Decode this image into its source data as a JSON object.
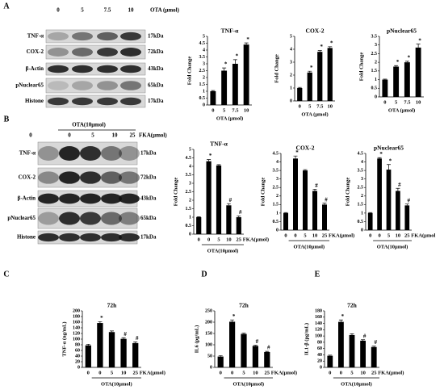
{
  "panel_labels": [
    "A",
    "B",
    "C",
    "D",
    "E"
  ],
  "blot_a": {
    "header": [
      "0",
      "5",
      "7.5",
      "10"
    ],
    "unit": "OTA (μmol)",
    "rows": [
      {
        "label": "TNF-α",
        "kda": "17kDa"
      },
      {
        "label": "COX-2",
        "kda": "72kDa"
      },
      {
        "label": "β-Actin",
        "kda": "43kDa"
      },
      {
        "label": "pNuclear65",
        "kda": "65kDa"
      },
      {
        "label": "Histone",
        "kda": "17kDa"
      }
    ]
  },
  "blot_b": {
    "group": "OTA(10μmol)",
    "header": [
      "0",
      "0",
      "5",
      "10",
      "25"
    ],
    "unit": "FKA(μmol)",
    "rows": [
      {
        "label": "TNF-α",
        "kda": "17kDa"
      },
      {
        "label": "COX-2",
        "kda": "72kDa"
      },
      {
        "label": "β-Actin",
        "kda": "43kDa"
      },
      {
        "label": "pNuclear65",
        "kda": "65kDa"
      },
      {
        "label": "Histone",
        "kda": "17kDa"
      }
    ]
  },
  "chart_data": [
    {
      "type": "bar",
      "title": "TNF-α",
      "y_label": "Fold Change",
      "x_label": "OTA (μmol)",
      "categories": [
        "0",
        "5",
        "7.5",
        "10"
      ],
      "values": [
        1,
        2.5,
        3.0,
        4.4
      ],
      "errors": [
        0.05,
        0.2,
        0.3,
        0.12
      ],
      "annotations": [
        null,
        "*",
        "*",
        "*"
      ],
      "color": "#000000",
      "ylim": [
        0,
        5
      ],
      "yticks": [
        0,
        0.5,
        1,
        1.5,
        2,
        2.5,
        3,
        3.5,
        4,
        4.5,
        5
      ]
    },
    {
      "type": "bar",
      "title": "COX-2",
      "y_label": "Fold Change",
      "x_label": "OTA (μmol)",
      "categories": [
        "0",
        "5",
        "7.5",
        "10"
      ],
      "values": [
        1,
        2.2,
        3.8,
        4.1
      ],
      "errors": [
        0.05,
        0.1,
        0.1,
        0.1
      ],
      "annotations": [
        null,
        "*",
        "*",
        "*"
      ],
      "color": "#000000",
      "ylim": [
        0,
        5
      ],
      "yticks": [
        0,
        1,
        2,
        3,
        4,
        5
      ]
    },
    {
      "type": "bar",
      "title": "pNuclear65",
      "y_label": "Fold Change",
      "x_label": "OTA (μmol)",
      "categories": [
        "0",
        "5",
        "7.5",
        "10"
      ],
      "values": [
        1,
        1.75,
        2.0,
        2.85
      ],
      "errors": [
        0.03,
        0.06,
        0.06,
        0.2
      ],
      "annotations": [
        null,
        "*",
        "*",
        "*"
      ],
      "color": "#000000",
      "ylim": [
        0,
        3.5
      ],
      "yticks": [
        0,
        0.5,
        1,
        1.5,
        2,
        2.5,
        3,
        3.5
      ]
    },
    {
      "type": "bar",
      "title": "TNF-α",
      "y_label": "Fold Change",
      "group_label": "OTA(10μmol)",
      "x_label_2": "FKA(μmol)",
      "categories": [
        "0",
        "0",
        "5",
        "10",
        "25"
      ],
      "values": [
        1,
        4.3,
        4.05,
        1.7,
        1.0
      ],
      "errors": [
        0.03,
        0.1,
        0.05,
        0.1,
        0.08
      ],
      "annotations": [
        null,
        "*",
        null,
        "#",
        "#"
      ],
      "color": "#000000",
      "ylim": [
        0,
        5
      ],
      "yticks": [
        0,
        0.5,
        1,
        1.5,
        2,
        2.5,
        3,
        3.5,
        4,
        4.5,
        5
      ]
    },
    {
      "type": "bar",
      "title": "COX-2",
      "y_label": "Fold Change",
      "group_label": "OTA(10μmol)",
      "x_label_2": "FKA(μmol)",
      "categories": [
        "0",
        "0",
        "5",
        "10",
        "25"
      ],
      "values": [
        1,
        4.2,
        3.5,
        2.3,
        1.5
      ],
      "errors": [
        0.03,
        0.15,
        0.05,
        0.1,
        0.08
      ],
      "annotations": [
        null,
        "*",
        null,
        "#",
        "#"
      ],
      "color": "#000000",
      "ylim": [
        0,
        4.5
      ],
      "yticks": [
        0,
        0.5,
        1,
        1.5,
        2,
        2.5,
        3,
        3.5,
        4,
        4.5
      ]
    },
    {
      "type": "bar",
      "title": "pNuclear65",
      "y_label": "Fold Change",
      "group_label": "OTA(10μmol)",
      "x_label_2": "FKA(μmol",
      "categories": [
        "0",
        "0",
        "5",
        "10",
        "25"
      ],
      "values": [
        1,
        4.2,
        3.55,
        2.3,
        1.45
      ],
      "errors": [
        0.03,
        0.05,
        0.3,
        0.15,
        0.08
      ],
      "annotations": [
        null,
        "*",
        "*",
        "#",
        "#"
      ],
      "color": "#000000",
      "ylim": [
        0,
        4.5
      ],
      "yticks": [
        0,
        0.5,
        1,
        1.5,
        2,
        2.5,
        3,
        3.5,
        4,
        4.5
      ]
    },
    {
      "type": "bar",
      "title": "72h",
      "y_label": "TNF-α  (ng/mL)",
      "group_label": "OTA(10μmol)",
      "x_label_2": "FKA(μmol)",
      "categories": [
        "0",
        "0",
        "5",
        "10",
        "25"
      ],
      "values": [
        78,
        157,
        125,
        101,
        86
      ],
      "errors": [
        4,
        5,
        4,
        4,
        4
      ],
      "annotations": [
        null,
        "*",
        null,
        "#",
        "#"
      ],
      "color": "#000000",
      "ylim": [
        0,
        200
      ],
      "yticks": [
        0,
        20,
        40,
        60,
        80,
        100,
        120,
        140,
        160,
        180,
        200
      ]
    },
    {
      "type": "bar",
      "title": "72h",
      "y_label": "IL6  (pg/mL)",
      "group_label": "OTA(10μmol)",
      "x_label_2": "FKA(μmol)",
      "categories": [
        "0",
        "0",
        "5",
        "10",
        "25"
      ],
      "values": [
        48,
        202,
        148,
        95,
        68
      ],
      "errors": [
        4,
        8,
        4,
        3,
        3
      ],
      "annotations": [
        null,
        "*",
        null,
        "#",
        "#"
      ],
      "color": "#000000",
      "ylim": [
        0,
        250
      ],
      "yticks": [
        0,
        50,
        100,
        150,
        200,
        250
      ]
    },
    {
      "type": "bar",
      "title": "72h",
      "y_label": "IL1-β  (pg/mL)",
      "group_label": "OTA(10μmol)",
      "x_label_2": "FKA(μmol)",
      "categories": [
        "0",
        "0",
        "5",
        "10",
        "25"
      ],
      "values": [
        37,
        145,
        103,
        85,
        65
      ],
      "errors": [
        2,
        6,
        4,
        3,
        3
      ],
      "annotations": [
        null,
        "*",
        null,
        "#",
        "#"
      ],
      "color": "#000000",
      "ylim": [
        0,
        180
      ],
      "yticks": [
        0,
        20,
        40,
        60,
        80,
        100,
        120,
        140,
        160,
        180
      ]
    }
  ]
}
